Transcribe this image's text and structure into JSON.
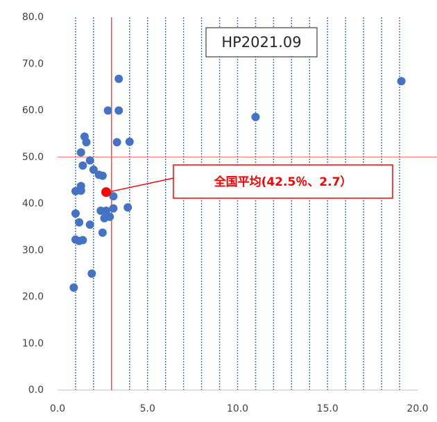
{
  "chart_data": {
    "type": "scatter",
    "title": "HP2021.09",
    "x": [
      0.9,
      1.0,
      1.0,
      1.0,
      1.2,
      1.2,
      1.3,
      1.3,
      1.3,
      1.4,
      1.4,
      1.5,
      1.6,
      1.8,
      1.8,
      1.9,
      2.0,
      2.3,
      2.4,
      2.5,
      2.5,
      2.6,
      2.7,
      2.8,
      2.9,
      3.1,
      3.1,
      3.3,
      3.4,
      3.4,
      3.9,
      4.0,
      11.0,
      19.1
    ],
    "values": [
      22.0,
      42.7,
      37.9,
      32.3,
      36.0,
      32.0,
      43.8,
      42.8,
      51.0,
      48.2,
      32.2,
      54.4,
      53.2,
      49.3,
      35.5,
      25.0,
      47.3,
      46.2,
      38.5,
      46.0,
      33.8,
      36.9,
      38.5,
      60.0,
      37.2,
      41.6,
      39.0,
      53.2,
      66.8,
      60.0,
      39.2,
      53.3,
      58.6,
      66.3
    ],
    "color": "#4472c4",
    "highlight": {
      "x": 2.7,
      "y": 42.5,
      "color": "#ff0000",
      "label": "全国平均(42.5％、2.7）"
    },
    "reference_lines": {
      "x": 3,
      "y": 50,
      "color": "#c00000"
    },
    "xlim": [
      0,
      20
    ],
    "xticks": [
      {
        "value": 0,
        "label": "0.0"
      },
      {
        "value": 5,
        "label": "5.0"
      },
      {
        "value": 10,
        "label": "10.0"
      },
      {
        "value": 15,
        "label": "15.0"
      },
      {
        "value": 20,
        "label": "20.0"
      }
    ],
    "xgrid": [
      1,
      2,
      4,
      5,
      6,
      7,
      8,
      9,
      10,
      11,
      12,
      13,
      14,
      15,
      16,
      17,
      18,
      19
    ],
    "ylim": [
      0,
      80
    ],
    "yticks": [
      {
        "value": 0,
        "label": "0.0"
      },
      {
        "value": 10,
        "label": "10.0"
      },
      {
        "value": 20,
        "label": "20.0"
      },
      {
        "value": 30,
        "label": "30.0"
      },
      {
        "value": 40,
        "label": "40.0"
      },
      {
        "value": 50,
        "label": "50.0"
      },
      {
        "value": 60,
        "label": "60.0"
      },
      {
        "value": 70,
        "label": "70.0"
      },
      {
        "value": 80,
        "label": "80.0"
      }
    ]
  }
}
